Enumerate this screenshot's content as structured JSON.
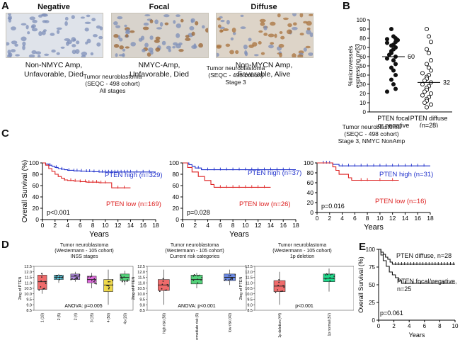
{
  "panels": {
    "A": {
      "label": "A",
      "images": [
        {
          "title": "Negative",
          "caption": [
            "Non-NMYC Amp,",
            "Unfavorable, Died"
          ],
          "stain": "negative"
        },
        {
          "title": "Focal",
          "caption": [
            "NMYC-Amp,",
            "Unfavorable, Died"
          ],
          "stain": "focal"
        },
        {
          "title": "Diffuse",
          "caption": [
            "Non-MYCN Amp,",
            "Favorable, Alive"
          ],
          "stain": "diffuse"
        }
      ]
    },
    "B": {
      "label": "B"
    },
    "C": {
      "label": "C",
      "titles": [
        [
          "Tumor neuroblastoma",
          "(SEQC - 498 cohort)",
          "All stages"
        ],
        [
          "Tumor neuroblastoma",
          "(SEQC - 498 cohort)",
          "Stage 3"
        ],
        [
          "Tumor neuroblastoma",
          "(SEQC - 498 cohort)",
          "Stage 3, NMYC NonAmp"
        ]
      ]
    },
    "D": {
      "label": "D",
      "titles": [
        [
          "Tumor neuroblastoma",
          "(Westermann - 105 cohort)",
          "INSS stages"
        ],
        [
          "Tumor neuroblastoma",
          "(Westermann - 105 cohort)",
          "Current risk categories"
        ],
        [
          "Tumor neuroblastoma",
          "(Westermann - 105 cohort)",
          "1p deletion"
        ]
      ]
    },
    "E": {
      "label": "E"
    }
  },
  "chart_data": [
    {
      "id": "B",
      "type": "scatter",
      "ylabel": [
        "%microvessels",
        "expressing αvβ3"
      ],
      "ylim": [
        0,
        100
      ],
      "yticks": [
        "0",
        "10",
        "20",
        "30",
        "40",
        "50",
        "60",
        "70",
        "80",
        "90",
        "100"
      ],
      "groups": [
        {
          "name": "PTEN focal or negative",
          "label": [
            "PTEN focal",
            "or negative",
            "(n=25)"
          ],
          "median": 60,
          "median_label": "60",
          "marker": "filled",
          "values": [
            90,
            82,
            80,
            79,
            78,
            76,
            75,
            73,
            72,
            70,
            68,
            66,
            64,
            62,
            60,
            58,
            56,
            52,
            48,
            45,
            40,
            35,
            30,
            25,
            22
          ]
        },
        {
          "name": "PTEN diffuse",
          "label": [
            "PTEN diffuse",
            "(n=28)"
          ],
          "median": 32,
          "median_label": "32",
          "marker": "open",
          "values": [
            90,
            82,
            76,
            68,
            64,
            56,
            52,
            48,
            45,
            42,
            40,
            38,
            36,
            34,
            32,
            30,
            28,
            26,
            24,
            22,
            20,
            18,
            16,
            14,
            12,
            10,
            8,
            5
          ]
        }
      ]
    },
    {
      "id": "C1",
      "type": "line",
      "xlabel": "Years",
      "ylabel": "Overall Survival (%)",
      "xlim": [
        0,
        18
      ],
      "ylim": [
        0,
        100
      ],
      "xticks": [
        "0",
        "2",
        "4",
        "6",
        "8",
        "10",
        "12",
        "14",
        "16",
        "18"
      ],
      "yticks": [
        "0",
        "20",
        "40",
        "60",
        "80",
        "100"
      ],
      "pvalue": "p<0.001",
      "series": [
        {
          "name": "PTEN high (n=329)",
          "color": "#2233cc",
          "steps": [
            [
              0,
              100
            ],
            [
              0.5,
              98
            ],
            [
              1,
              96
            ],
            [
              1.5,
              94
            ],
            [
              2,
              92
            ],
            [
              2.5,
              90
            ],
            [
              3,
              89
            ],
            [
              3.5,
              88
            ],
            [
              4,
              87
            ],
            [
              5,
              86
            ],
            [
              6,
              85.5
            ],
            [
              7,
              85
            ],
            [
              8,
              84.5
            ],
            [
              9,
              84
            ],
            [
              18,
              84
            ]
          ],
          "censor": [
            1.2,
            2.2,
            3.1,
            4.2,
            5,
            5.5,
            6.2,
            7,
            7.5,
            8.2,
            9,
            9.5,
            10,
            10.5,
            11,
            11.5,
            12,
            12.5,
            13,
            13.5,
            14,
            15,
            16,
            17
          ]
        },
        {
          "name": "PTEN low (n=169)",
          "color": "#dd2222",
          "steps": [
            [
              0,
              100
            ],
            [
              0.5,
              96
            ],
            [
              1,
              90
            ],
            [
              1.5,
              85
            ],
            [
              2,
              80
            ],
            [
              2.5,
              76
            ],
            [
              3,
              73
            ],
            [
              3.5,
              70
            ],
            [
              4,
              69
            ],
            [
              5,
              68
            ],
            [
              6,
              67
            ],
            [
              7,
              66
            ],
            [
              9,
              65
            ],
            [
              11,
              56
            ],
            [
              14,
              56
            ]
          ],
          "censor": [
            3.5,
            4.5,
            5.2,
            6,
            6.8,
            7.4,
            8,
            8.6,
            9.3,
            10,
            12,
            13
          ]
        }
      ]
    },
    {
      "id": "C2",
      "type": "line",
      "xlabel": "Years",
      "xlim": [
        0,
        18
      ],
      "ylim": [
        0,
        100
      ],
      "xticks": [
        "0",
        "2",
        "4",
        "6",
        "8",
        "10",
        "12",
        "14",
        "16",
        "18"
      ],
      "yticks": [
        "0",
        "20",
        "40",
        "60",
        "80",
        "100"
      ],
      "pvalue": "p=0.028",
      "series": [
        {
          "name": "PTEN high (n=37)",
          "color": "#2233cc",
          "steps": [
            [
              0,
              100
            ],
            [
              1,
              97
            ],
            [
              1.5,
              94
            ],
            [
              2,
              91
            ],
            [
              3,
              88
            ],
            [
              18,
              88
            ]
          ],
          "censor": [
            2.5,
            4,
            5,
            6,
            7,
            8,
            9,
            10,
            11,
            12,
            13,
            14,
            15,
            16,
            17
          ]
        },
        {
          "name": "PTEN low (n=26)",
          "color": "#dd2222",
          "steps": [
            [
              0,
              100
            ],
            [
              0.8,
              92
            ],
            [
              1.5,
              84
            ],
            [
              2.5,
              76
            ],
            [
              3.5,
              69
            ],
            [
              4.5,
              62
            ],
            [
              5,
              57
            ],
            [
              14,
              57
            ]
          ],
          "censor": [
            6,
            7,
            8,
            9,
            10,
            11,
            12,
            13
          ]
        }
      ]
    },
    {
      "id": "C3",
      "type": "line",
      "xlabel": "Years",
      "xlim": [
        0,
        18
      ],
      "ylim": [
        0,
        100
      ],
      "xticks": [
        "0",
        "2",
        "4",
        "6",
        "8",
        "10",
        "12",
        "14",
        "16",
        "18"
      ],
      "yticks": [
        "0",
        "20",
        "40",
        "60",
        "80",
        "100"
      ],
      "pvalue": "p=0.016",
      "series": [
        {
          "name": "PTEN high (n=31)",
          "color": "#2233cc",
          "steps": [
            [
              0,
              100
            ],
            [
              2.5,
              97
            ],
            [
              3.5,
              94
            ],
            [
              18,
              94
            ]
          ],
          "censor": [
            1,
            1.5,
            2,
            4,
            5,
            6,
            7,
            8,
            9,
            10,
            11,
            12,
            13,
            14,
            15,
            16,
            17
          ]
        },
        {
          "name": "PTEN low (n=16)",
          "color": "#dd2222",
          "steps": [
            [
              0,
              100
            ],
            [
              2.5,
              92
            ],
            [
              3,
              85
            ],
            [
              3.5,
              77
            ],
            [
              5,
              70
            ],
            [
              5.5,
              65
            ],
            [
              13,
              65
            ]
          ],
          "censor": [
            7,
            8,
            10,
            12
          ]
        }
      ]
    },
    {
      "id": "D1",
      "type": "box",
      "ylabel": "2log of PTEN",
      "ylim": [
        8.5,
        12.5
      ],
      "yticks": [
        "8.5",
        "9.0",
        "9.5",
        "10.0",
        "10.5",
        "11.0",
        "11.5",
        "12.0",
        "12.5"
      ],
      "annotation": "ANOVA: p=0.005",
      "boxes": [
        {
          "label": "1 (10)",
          "color": "#ef6b6b",
          "min": 10.0,
          "q1": 10.4,
          "median": 11.1,
          "q3": 11.7,
          "max": 11.9
        },
        {
          "label": "2 (5)",
          "color": "#58c8dc",
          "min": 11.0,
          "q1": 11.3,
          "median": 11.5,
          "q3": 11.7,
          "max": 11.8
        },
        {
          "label": "2 (4)",
          "color": "#b28ce0",
          "min": 11.1,
          "q1": 11.3,
          "median": 11.6,
          "q3": 11.8,
          "max": 12.0
        },
        {
          "label": "3 (15)",
          "color": "#e26be0",
          "min": 10.5,
          "q1": 11.0,
          "median": 11.3,
          "q3": 11.6,
          "max": 11.9
        },
        {
          "label": "4 (50)",
          "color": "#eed84a",
          "min": 9.0,
          "q1": 10.2,
          "median": 10.8,
          "q3": 11.3,
          "max": 12.2
        },
        {
          "label": "4s (20)",
          "color": "#54d27a",
          "min": 10.8,
          "q1": 11.2,
          "median": 11.5,
          "q3": 11.8,
          "max": 12.1
        }
      ]
    },
    {
      "id": "D2",
      "type": "box",
      "ylabel": "2log of PTEN",
      "ylim": [
        8.5,
        12.5
      ],
      "yticks": [
        "8.5",
        "9.0",
        "9.5",
        "10.0",
        "10.5",
        "11.0",
        "11.5",
        "12.0",
        "12.5"
      ],
      "annotation": "ANOVA: p<0.001",
      "boxes": [
        {
          "label": "high risk (56)",
          "color": "#ef6b6b",
          "min": 9.0,
          "q1": 10.3,
          "median": 10.8,
          "q3": 11.3,
          "max": 12.2
        },
        {
          "label": "intermediate risk (9)",
          "color": "#54d27a",
          "min": 10.5,
          "q1": 10.9,
          "median": 11.3,
          "q3": 11.7,
          "max": 11.9
        },
        {
          "label": "low risk (40)",
          "color": "#6b8ae6",
          "min": 10.8,
          "q1": 11.2,
          "median": 11.5,
          "q3": 11.8,
          "max": 12.2
        }
      ]
    },
    {
      "id": "D3",
      "type": "box",
      "ylabel": "2log of PTEN",
      "ylim": [
        8.5,
        12.5
      ],
      "yticks": [
        "8.5",
        "9.0",
        "9.5",
        "10.0",
        "10.5",
        "11.0",
        "11.5",
        "12.0",
        "12.5"
      ],
      "annotation": "p<0.001",
      "boxes": [
        {
          "label": "1p deletion (44)",
          "color": "#ef6b6b",
          "min": 9.0,
          "q1": 10.2,
          "median": 10.7,
          "q3": 11.2,
          "max": 12.0
        },
        {
          "label": "1p normal (57)",
          "color": "#1fd88a",
          "min": 10.2,
          "q1": 11.1,
          "median": 11.4,
          "q3": 11.8,
          "max": 12.3
        }
      ]
    },
    {
      "id": "E",
      "type": "line",
      "xlabel": "Years",
      "ylabel": "Overall Survival (%)",
      "xlim": [
        0,
        10
      ],
      "ylim": [
        0,
        100
      ],
      "xticks": [
        "0",
        "2",
        "4",
        "6",
        "8",
        "10"
      ],
      "yticks": [
        "0",
        "25",
        "50",
        "75",
        "100"
      ],
      "pvalue": "p=0.061",
      "series": [
        {
          "name": "PTEN diffuse, n=28",
          "label": [
            "PTEN diffuse, n=28"
          ],
          "color": "#111111",
          "steps": [
            [
              0,
              100
            ],
            [
              0.3,
              96
            ],
            [
              0.6,
              93
            ],
            [
              0.9,
              89
            ],
            [
              1.2,
              86
            ],
            [
              1.5,
              82
            ],
            [
              1.8,
              79
            ],
            [
              10,
              79
            ]
          ],
          "censor": [
            2.2,
            2.6,
            3,
            3.4,
            3.8,
            4.2,
            4.6,
            5,
            5.4,
            5.8,
            6.2,
            6.6,
            7,
            7.4,
            7.8,
            8.2,
            8.6,
            9,
            9.4,
            9.8
          ]
        },
        {
          "name": "PTEN focal/negative, n=25",
          "label": [
            "PTEN focal/negative,",
            "n=25"
          ],
          "color": "#111111",
          "steps": [
            [
              0,
              100
            ],
            [
              0.3,
              92
            ],
            [
              0.6,
              84
            ],
            [
              1,
              76
            ],
            [
              1.4,
              68
            ],
            [
              1.8,
              64
            ],
            [
              2.2,
              60
            ],
            [
              2.6,
              56
            ],
            [
              3,
              52
            ],
            [
              10,
              52
            ]
          ],
          "censor": [
            3.5,
            4.5,
            5.5,
            7,
            8.5
          ]
        }
      ]
    }
  ]
}
